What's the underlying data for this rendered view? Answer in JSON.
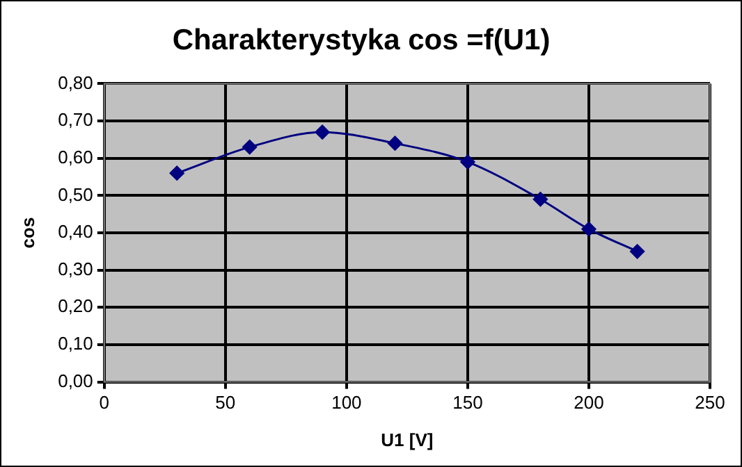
{
  "chart_data": {
    "type": "line",
    "title": "Charakterystyka cos =f(U1)",
    "xlabel": "U1 [V]",
    "ylabel": "cos",
    "x": [
      30,
      60,
      90,
      120,
      150,
      180,
      200,
      220
    ],
    "series": [
      {
        "color": "#000080",
        "values": [
          0.56,
          0.63,
          0.67,
          0.64,
          0.59,
          0.49,
          0.41,
          0.35
        ]
      }
    ],
    "xlim": [
      0,
      250
    ],
    "xticks": [
      0,
      50,
      100,
      150,
      200,
      250
    ],
    "ylim": [
      0,
      0.8
    ],
    "yticks": [
      {
        "value": 0,
        "label": "0,00"
      },
      {
        "value": 0.1,
        "label": "0,10"
      },
      {
        "value": 0.2,
        "label": "0,20"
      },
      {
        "value": 0.3,
        "label": "0,30"
      },
      {
        "value": 0.4,
        "label": "0,40"
      },
      {
        "value": 0.5,
        "label": "0,50"
      },
      {
        "value": 0.6,
        "label": "0,60"
      },
      {
        "value": 0.7,
        "label": "0,70"
      },
      {
        "value": 0.8,
        "label": "0,80"
      }
    ],
    "grid": true,
    "legend": false,
    "marker": "diamond",
    "line_style": "solid"
  }
}
